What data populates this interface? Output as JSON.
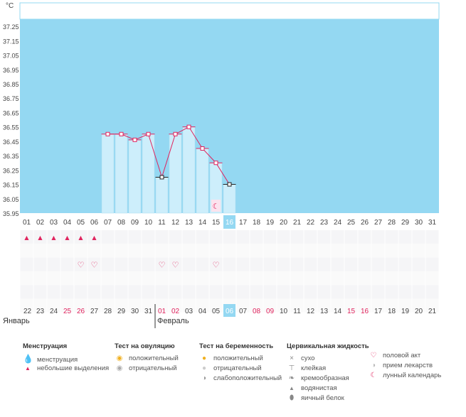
{
  "chart_data": {
    "type": "bar",
    "ylabel": "°C",
    "ylim": [
      35.95,
      37.3
    ],
    "y_ticks": [
      "35.95",
      "36.05",
      "36.15",
      "36.25",
      "36.35",
      "36.45",
      "36.55",
      "36.65",
      "36.75",
      "36.85",
      "36.95",
      "37.05",
      "37.15",
      "37.25"
    ],
    "x": [
      "01",
      "02",
      "03",
      "04",
      "05",
      "06",
      "07",
      "08",
      "09",
      "10",
      "11",
      "12",
      "13",
      "14",
      "15",
      "16",
      "17",
      "18",
      "19",
      "20",
      "21",
      "22",
      "23",
      "24",
      "25",
      "26",
      "27",
      "28",
      "29",
      "30",
      "31"
    ],
    "highlight_index": 15,
    "series": [
      {
        "values": [
          null,
          null,
          null,
          null,
          null,
          null,
          36.5,
          36.5,
          36.46,
          36.5,
          36.2,
          36.5,
          36.55,
          36.4,
          36.3,
          36.15,
          null,
          null,
          null,
          null,
          null,
          null,
          null,
          null,
          null,
          null,
          null,
          null,
          null,
          null,
          null
        ]
      }
    ],
    "rows": {
      "menstruation_days": [
        0,
        1,
        2,
        3,
        4,
        5
      ],
      "intercourse_days": [
        4,
        5,
        10,
        11,
        14
      ],
      "moon_day": 14
    },
    "dates_bottom": [
      "22",
      "23",
      "24",
      "25",
      "26",
      "27",
      "28",
      "29",
      "30",
      "31",
      "01",
      "02",
      "03",
      "04",
      "05",
      "06",
      "07",
      "08",
      "09",
      "10",
      "11",
      "12",
      "13",
      "14",
      "15",
      "16",
      "17",
      "18",
      "19",
      "20",
      "21"
    ],
    "red_date_indices": [
      3,
      4,
      10,
      11,
      17,
      18,
      24,
      25
    ],
    "highlight_bottom_index": 15,
    "month_separator_index": 10
  },
  "months": {
    "left": "Январь",
    "right": "Февраль"
  },
  "legend": {
    "menstruation": {
      "title": "Менструация",
      "items": [
        "менструация",
        "небольшие выделения"
      ]
    },
    "ovulation": {
      "title": "Тест на овуляцию",
      "items": [
        "положительный",
        "отрицательный"
      ]
    },
    "pregnancy": {
      "title": "Тест на беременность",
      "items": [
        "положительный",
        "отрицательный",
        "слабоположительный"
      ]
    },
    "cervical": {
      "title": "Цервикальная жидкость",
      "items": [
        "сухо",
        "клейкая",
        "кремообразная",
        "водянистая",
        "яичный белок"
      ]
    },
    "other": {
      "items": [
        "половой акт",
        "прием лекарств",
        "лунный календарь"
      ]
    }
  },
  "colors": {
    "plot": "#94d8f2",
    "bar": "#cdeefb",
    "line": "#e0245e",
    "highlight": "#94d8f2",
    "red": "#e0245e"
  }
}
